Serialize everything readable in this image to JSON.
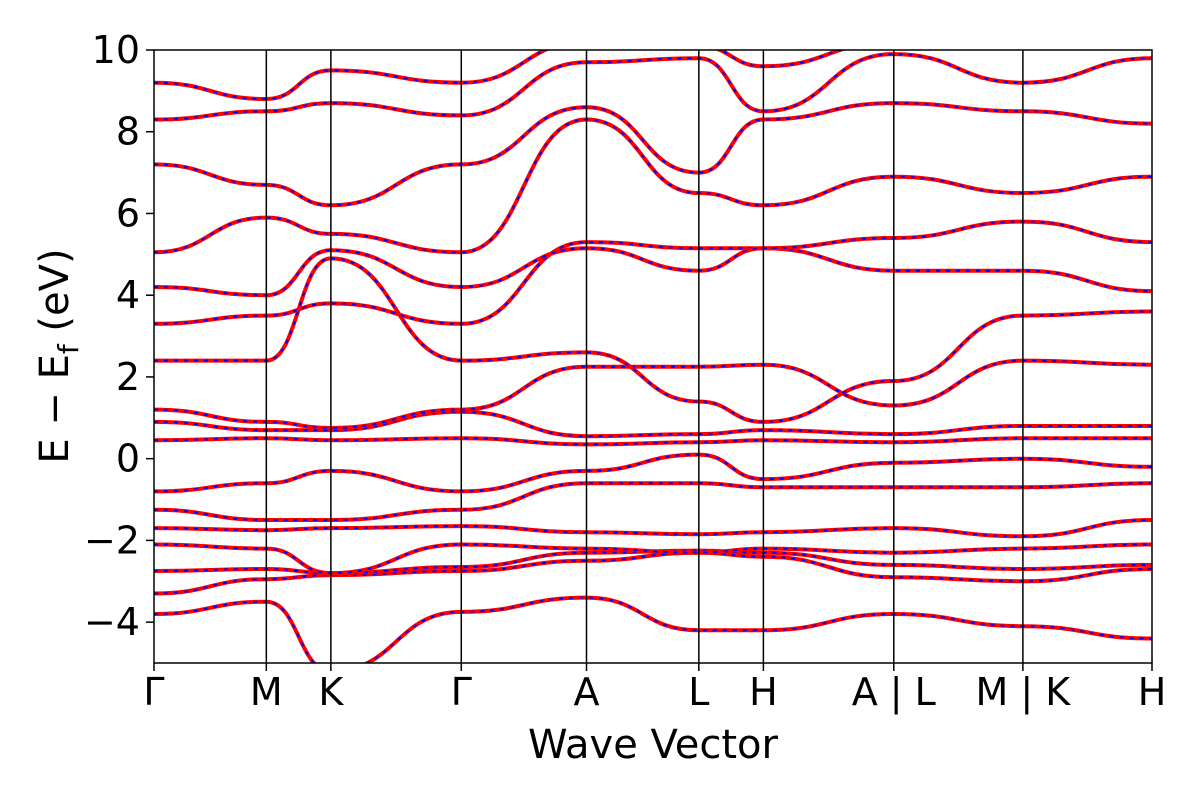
{
  "chart_data": {
    "type": "line",
    "title": "",
    "xlabel": "Wave Vector",
    "ylabel": {
      "main": "E − E",
      "sub": "f",
      "unit": " (eV)"
    },
    "ylim": [
      -5,
      10
    ],
    "yticks": [
      10,
      8,
      6,
      4,
      2,
      0,
      -2,
      -4
    ],
    "ytick_labels": [
      "10",
      "8",
      "6",
      "4",
      "2",
      "0",
      "−2",
      "−4"
    ],
    "xlim": [
      0,
      7.73
    ],
    "path_ticks": [
      {
        "x": 0.0,
        "label": "Γ"
      },
      {
        "x": 0.87,
        "label": "M"
      },
      {
        "x": 1.37,
        "label": "K"
      },
      {
        "x": 2.38,
        "label": "Γ"
      },
      {
        "x": 3.35,
        "label": "A"
      },
      {
        "x": 4.22,
        "label": "L"
      },
      {
        "x": 4.72,
        "label": "H"
      },
      {
        "x": 5.73,
        "label": "A|L"
      },
      {
        "x": 6.73,
        "label": "M|K"
      },
      {
        "x": 7.73,
        "label": "H"
      }
    ],
    "grid": false,
    "legend": "none",
    "colors": {
      "primary": "#ff0000",
      "secondary": "#0000ff"
    },
    "series": [
      {
        "line": "red-solid",
        "color": "#ff0000",
        "x": [
          0,
          0.87,
          1.37,
          2.38,
          3.35,
          4.22,
          4.72,
          5.73,
          6.73,
          7.73
        ],
        "y": [
          -3.8,
          -3.5,
          -5.2,
          -3.75,
          -3.4,
          -4.2,
          -4.2,
          -3.8,
          -4.1,
          -4.4
        ]
      },
      {
        "line": "red-solid",
        "color": "#ff0000",
        "x": [
          0,
          0.87,
          1.37,
          2.38,
          3.35,
          4.22,
          4.72,
          5.73,
          6.73,
          7.73
        ],
        "y": [
          -3.3,
          -2.95,
          -2.85,
          -2.75,
          -2.5,
          -2.3,
          -2.4,
          -2.9,
          -3.0,
          -2.7
        ]
      },
      {
        "line": "red-solid",
        "color": "#ff0000",
        "x": [
          0,
          0.87,
          1.37,
          2.38,
          3.35,
          4.22,
          4.72,
          5.73,
          6.73,
          7.73
        ],
        "y": [
          -2.75,
          -2.7,
          -2.8,
          -2.65,
          -2.3,
          -2.25,
          -2.3,
          -2.6,
          -2.7,
          -2.6
        ]
      },
      {
        "line": "red-solid",
        "color": "#ff0000",
        "x": [
          0,
          0.87,
          1.37,
          2.38,
          3.35,
          4.22,
          4.72,
          5.73,
          6.73,
          7.73
        ],
        "y": [
          -2.1,
          -2.2,
          -2.8,
          -2.1,
          -2.2,
          -2.3,
          -2.2,
          -2.3,
          -2.2,
          -2.1
        ]
      },
      {
        "line": "red-solid",
        "color": "#ff0000",
        "x": [
          0,
          0.87,
          1.37,
          2.38,
          3.35,
          4.22,
          4.72,
          5.73,
          6.73,
          7.73
        ],
        "y": [
          -1.7,
          -1.75,
          -1.7,
          -1.65,
          -1.8,
          -1.85,
          -1.8,
          -1.7,
          -1.9,
          -1.5
        ]
      },
      {
        "line": "red-solid",
        "color": "#ff0000",
        "x": [
          0,
          0.87,
          1.37,
          2.38,
          3.35,
          4.22,
          4.72,
          5.73,
          6.73,
          7.73
        ],
        "y": [
          -1.25,
          -1.5,
          -1.5,
          -1.25,
          -0.6,
          -0.6,
          -0.7,
          -0.7,
          -0.7,
          -0.6
        ]
      },
      {
        "line": "red-solid",
        "color": "#ff0000",
        "x": [
          0,
          0.87,
          1.37,
          2.38,
          3.35,
          4.22,
          4.72,
          5.73,
          6.73,
          7.73
        ],
        "y": [
          -0.8,
          -0.6,
          -0.3,
          -0.8,
          -0.3,
          0.1,
          -0.5,
          -0.1,
          0.0,
          -0.2
        ]
      },
      {
        "line": "red-solid",
        "color": "#ff0000",
        "x": [
          0,
          0.87,
          1.37,
          2.38,
          3.35,
          4.22,
          4.72,
          5.73,
          6.73,
          7.73
        ],
        "y": [
          0.45,
          0.5,
          0.45,
          0.5,
          0.35,
          0.4,
          0.45,
          0.4,
          0.5,
          0.5
        ]
      },
      {
        "line": "red-solid",
        "color": "#ff0000",
        "x": [
          0,
          0.87,
          1.37,
          2.38,
          3.35,
          4.22,
          4.72,
          5.73,
          6.73,
          7.73
        ],
        "y": [
          0.9,
          0.7,
          0.7,
          1.15,
          0.55,
          0.6,
          0.7,
          0.6,
          0.8,
          0.8
        ]
      },
      {
        "line": "red-solid",
        "color": "#ff0000",
        "x": [
          0,
          0.87,
          1.37,
          2.38,
          3.35,
          4.22,
          4.72,
          5.73,
          6.73,
          7.73
        ],
        "y": [
          1.2,
          0.9,
          0.75,
          1.2,
          2.25,
          2.25,
          2.3,
          1.3,
          2.4,
          2.3
        ]
      },
      {
        "line": "red-solid",
        "color": "#ff0000",
        "x": [
          0,
          0.87,
          1.37,
          2.38,
          3.35,
          4.22,
          4.72,
          5.73,
          6.73,
          7.73
        ],
        "y": [
          2.4,
          2.4,
          4.9,
          2.4,
          2.6,
          1.4,
          0.9,
          1.9,
          3.5,
          3.6
        ]
      },
      {
        "line": "red-solid",
        "color": "#ff0000",
        "x": [
          0,
          0.87,
          1.37,
          2.38,
          3.35,
          4.22,
          4.72,
          5.73,
          6.73,
          7.73
        ],
        "y": [
          3.3,
          3.5,
          3.8,
          3.3,
          5.3,
          5.15,
          5.15,
          4.6,
          4.6,
          4.1
        ]
      },
      {
        "line": "red-solid",
        "color": "#ff0000",
        "x": [
          0,
          0.87,
          1.37,
          2.38,
          3.35,
          4.22,
          4.72,
          5.73,
          6.73,
          7.73
        ],
        "y": [
          4.2,
          4.0,
          5.1,
          4.2,
          5.15,
          4.6,
          5.15,
          5.4,
          5.8,
          5.3
        ]
      },
      {
        "line": "red-solid",
        "color": "#ff0000",
        "x": [
          0,
          0.87,
          1.37,
          2.38,
          3.35,
          4.22,
          4.72,
          5.73,
          6.73,
          7.73
        ],
        "y": [
          5.05,
          5.9,
          5.5,
          5.05,
          8.3,
          6.5,
          6.2,
          6.9,
          6.5,
          6.9
        ]
      },
      {
        "line": "red-solid",
        "color": "#ff0000",
        "x": [
          0,
          0.87,
          1.37,
          2.38,
          3.35,
          4.22,
          4.72,
          5.73,
          6.73,
          7.73
        ],
        "y": [
          7.2,
          6.7,
          6.2,
          7.2,
          8.6,
          7.0,
          8.3,
          8.7,
          8.5,
          8.2
        ]
      },
      {
        "line": "red-solid",
        "color": "#ff0000",
        "x": [
          0,
          0.87,
          1.37,
          2.38,
          3.35,
          4.22,
          4.72,
          5.73,
          6.73,
          7.73
        ],
        "y": [
          8.3,
          8.5,
          8.7,
          8.4,
          9.7,
          9.8,
          8.5,
          9.9,
          9.2,
          9.8
        ]
      },
      {
        "line": "red-solid",
        "color": "#ff0000",
        "x": [
          0,
          0.87,
          1.37,
          2.38,
          3.35,
          4.22,
          4.72,
          5.73,
          6.73,
          7.73
        ],
        "y": [
          9.2,
          8.8,
          9.5,
          9.2,
          10.2,
          10.1,
          9.6,
          10.2,
          10.2,
          10.2
        ]
      }
    ]
  }
}
